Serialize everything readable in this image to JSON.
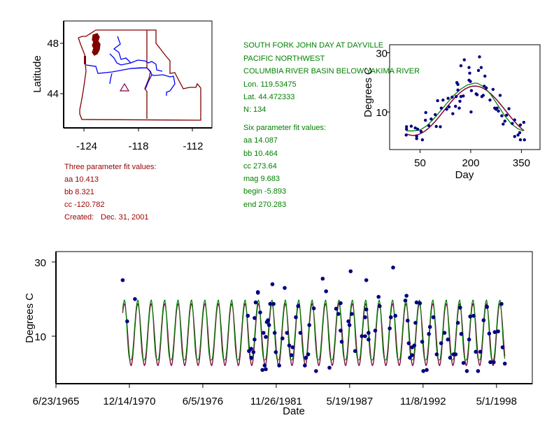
{
  "colors": {
    "state": "#800000",
    "river": "#0000ff",
    "site": "#800040",
    "three_fit": "#800040",
    "six_fit": "#008000",
    "points": "#000080",
    "info_red": "#990000",
    "info_green": "#008000"
  },
  "map": {
    "ylabel": "Latitude",
    "xticks": [
      "-124",
      "-118",
      "-112"
    ],
    "yticks": [
      "48",
      "44"
    ],
    "site_marker": "triangle"
  },
  "three_param": {
    "title": "Three parameter fit values:",
    "lines": [
      "aa 10.413",
      "bb 8.321",
      "cc -120.782"
    ],
    "created_label": "Created:",
    "created_date": "Dec. 31, 2001"
  },
  "station": {
    "lines": [
      "SOUTH FORK JOHN DAY AT DAYVILLE",
      "PACIFIC NORTHWEST",
      "COLUMBIA RIVER BASIN BELOW YAKIMA RIVER",
      "Lon. 119.53475",
      "Lat. 44.472333",
      "N: 134"
    ]
  },
  "six_param": {
    "title": "Six parameter fit values:",
    "lines": [
      "aa 14.087",
      "bb 10.464",
      "cc 273.64",
      "mag 9.683",
      "begin -5.893",
      "end 270.283"
    ]
  },
  "chart_data": [
    {
      "type": "scatter",
      "xlabel": "Day",
      "ylabel": "Degrees C",
      "xticks": [
        50,
        200,
        350
      ],
      "yticks": [
        10,
        30
      ],
      "xlim": [
        -40,
        405
      ],
      "ylim": [
        -2.7,
        32.7
      ],
      "grid": false,
      "points": [
        [
          10,
          5.0
        ],
        [
          10,
          4.2
        ],
        [
          24,
          5.2
        ],
        [
          9,
          2.2
        ],
        [
          36,
          4.6
        ],
        [
          40,
          1.8
        ],
        [
          43,
          4.2
        ],
        [
          40,
          1.0
        ],
        [
          57,
          0.6
        ],
        [
          53,
          3.4
        ],
        [
          67,
          9.8
        ],
        [
          66,
          7.2
        ],
        [
          76,
          5.4
        ],
        [
          83,
          7.6
        ],
        [
          98,
          5.1
        ],
        [
          95,
          9.1
        ],
        [
          102,
          13.8
        ],
        [
          110,
          5.0
        ],
        [
          113,
          11.3
        ],
        [
          118,
          14.0
        ],
        [
          129,
          10.9
        ],
        [
          133,
          14.6
        ],
        [
          136,
          11.7
        ],
        [
          147,
          9.4
        ],
        [
          145,
          15.0
        ],
        [
          155,
          11.9
        ],
        [
          157,
          15.2
        ],
        [
          159,
          19.9
        ],
        [
          162,
          19.3
        ],
        [
          162,
          17.4
        ],
        [
          168,
          13.6
        ],
        [
          171,
          15.2
        ],
        [
          166,
          11.3
        ],
        [
          178,
          15.4
        ],
        [
          181,
          27.6
        ],
        [
          171,
          25.6
        ],
        [
          195,
          25.0
        ],
        [
          197,
          23.1
        ],
        [
          199,
          20.3
        ],
        [
          202,
          17.2
        ],
        [
          201,
          10.0
        ],
        [
          195,
          20.7
        ],
        [
          216,
          16.1
        ],
        [
          219,
          15.8
        ],
        [
          226,
          28.6
        ],
        [
          223,
          24.0
        ],
        [
          231,
          25.0
        ],
        [
          237,
          15.6
        ],
        [
          233,
          15.2
        ],
        [
          242,
          22.1
        ],
        [
          240,
          18.7
        ],
        [
          246,
          18.1
        ],
        [
          257,
          14.0
        ],
        [
          266,
          17.6
        ],
        [
          271,
          11.3
        ],
        [
          275,
          10.9
        ],
        [
          278,
          11.3
        ],
        [
          282,
          10.3
        ],
        [
          287,
          15.6
        ],
        [
          292,
          8.7
        ],
        [
          296,
          5.9
        ],
        [
          301,
          6.9
        ],
        [
          306,
          8.9
        ],
        [
          313,
          11.1
        ],
        [
          323,
          6.1
        ],
        [
          330,
          7.3
        ],
        [
          330,
          1.7
        ],
        [
          340,
          2.2
        ],
        [
          345,
          3.0
        ],
        [
          347,
          5.6
        ],
        [
          347,
          0.6
        ],
        [
          357,
          6.5
        ],
        [
          359,
          0.6
        ]
      ],
      "six_fit_curve": {
        "day": [
          10,
          30,
          50,
          70,
          90,
          110,
          130,
          150,
          170,
          190,
          210,
          220,
          240,
          260,
          280,
          300,
          320,
          340,
          355
        ],
        "temp": [
          3.6,
          3.6,
          3.9,
          5.3,
          7.6,
          10.3,
          13.0,
          15.6,
          17.7,
          19.1,
          19.7,
          19.7,
          18.4,
          15.8,
          12.3,
          8.8,
          6.0,
          4.3,
          3.6
        ]
      },
      "three_fit": {
        "aa": 10.413,
        "bb": 8.321,
        "cc": -120.782
      }
    },
    {
      "type": "scatter",
      "xlabel": "Date",
      "ylabel": "Degrees C",
      "xticks": [
        "6/23/1965",
        "12/14/1970",
        "6/5/1976",
        "11/26/1981",
        "5/19/1987",
        "11/8/1992",
        "5/1/1998"
      ],
      "yticks": [
        10,
        30
      ],
      "xlim": [
        "1965-06-23",
        "2001-01-01"
      ],
      "ylim": [
        -2.8,
        32.8
      ],
      "fit_range": [
        "1970-06",
        "1998-12"
      ],
      "grid": false,
      "points": [
        [
          "1970-06",
          25.1
        ],
        [
          "1970-10",
          14.0
        ],
        [
          "1971-05",
          20.0
        ],
        [
          "1979-10",
          15.5
        ],
        [
          "1979-11",
          6.0
        ],
        [
          "1980-01",
          6.6
        ],
        [
          "1980-01",
          4.2
        ],
        [
          "1980-03",
          5.7
        ],
        [
          "1980-04",
          9.1
        ],
        [
          "1980-04",
          14.9
        ],
        [
          "1980-05",
          19.1
        ],
        [
          "1980-07",
          21.9
        ],
        [
          "1980-07",
          21.7
        ],
        [
          "1980-09",
          16.4
        ],
        [
          "1980-11",
          0.9
        ],
        [
          "1981-01",
          2.1
        ],
        [
          "1981-02",
          1.1
        ],
        [
          "1980-12",
          10.9
        ],
        [
          "1981-02",
          9.8
        ],
        [
          "1981-03",
          13.8
        ],
        [
          "1981-04",
          14.3
        ],
        [
          "1981-05",
          13.0
        ],
        [
          "1981-06",
          18.7
        ],
        [
          "1981-08",
          24.0
        ],
        [
          "1981-09",
          18.7
        ],
        [
          "1981-10",
          10.9
        ],
        [
          "1981-11",
          5.7
        ],
        [
          "1982-02",
          2.1
        ],
        [
          "1982-05",
          9.4
        ],
        [
          "1982-07",
          23.0
        ],
        [
          "1982-09",
          10.9
        ],
        [
          "1982-11",
          7.5
        ],
        [
          "1983-01",
          4.9
        ],
        [
          "1983-02",
          7.0
        ],
        [
          "1983-05",
          15.1
        ],
        [
          "1983-07",
          18.1
        ],
        [
          "1983-09",
          10.9
        ],
        [
          "1984-01",
          2.1
        ],
        [
          "1984-02",
          4.2
        ],
        [
          "1984-04",
          5.1
        ],
        [
          "1984-05",
          13.0
        ],
        [
          "1984-09",
          17.5
        ],
        [
          "1984-11",
          0.6
        ],
        [
          "1985-05",
          25.5
        ],
        [
          "1985-08",
          22.1
        ],
        [
          "1985-11",
          1.5
        ],
        [
          "1986-05",
          17.4
        ],
        [
          "1986-07",
          16.0
        ],
        [
          "1986-09",
          18.9
        ],
        [
          "1986-09",
          11.5
        ],
        [
          "1986-10",
          8.5
        ],
        [
          "1987-04",
          14.0
        ],
        [
          "1987-05",
          13.0
        ],
        [
          "1987-06",
          27.5
        ],
        [
          "1987-07",
          16.0
        ],
        [
          "1987-10",
          6.0
        ],
        [
          "1988-04",
          10.0
        ],
        [
          "1988-07",
          10.0
        ],
        [
          "1988-07",
          15.1
        ],
        [
          "1988-08",
          17.2
        ],
        [
          "1988-08",
          25.1
        ],
        [
          "1988-10",
          10.9
        ],
        [
          "1988-10",
          9.1
        ],
        [
          "1989-04",
          11.5
        ],
        [
          "1989-07",
          20.6
        ],
        [
          "1989-08",
          18.1
        ],
        [
          "1990-05",
          12.1
        ],
        [
          "1990-06",
          15.1
        ],
        [
          "1990-08",
          28.5
        ],
        [
          "1990-10",
          15.5
        ],
        [
          "1991-07",
          19.6
        ],
        [
          "1991-08",
          20.9
        ],
        [
          "1991-09",
          14.2
        ],
        [
          "1991-10",
          8.1
        ],
        [
          "1991-11",
          4.2
        ],
        [
          "1992-01",
          7.0
        ],
        [
          "1992-01",
          4.9
        ],
        [
          "1992-03",
          7.5
        ],
        [
          "1992-04",
          13.6
        ],
        [
          "1992-05",
          19.1
        ],
        [
          "1992-08",
          18.9
        ],
        [
          "1992-10",
          8.5
        ],
        [
          "1992-11",
          0.6
        ],
        [
          "1993-02",
          0.9
        ],
        [
          "1993-04",
          10.6
        ],
        [
          "1993-05",
          12.5
        ],
        [
          "1993-08",
          15.1
        ],
        [
          "1993-11",
          5.1
        ],
        [
          "1994-03",
          8.1
        ],
        [
          "1994-06",
          10.9
        ],
        [
          "1994-09",
          9.1
        ],
        [
          "1994-11",
          4.2
        ],
        [
          "1995-02",
          5.1
        ],
        [
          "1995-04",
          5.1
        ],
        [
          "1995-06",
          13.6
        ],
        [
          "1995-08",
          17.7
        ],
        [
          "1995-09",
          10.6
        ],
        [
          "1995-11",
          2.8
        ],
        [
          "1996-02",
          0.6
        ],
        [
          "1996-04",
          9.1
        ],
        [
          "1996-05",
          15.3
        ],
        [
          "1996-08",
          15.5
        ],
        [
          "1996-10",
          5.8
        ],
        [
          "1996-12",
          0.6
        ],
        [
          "1997-02",
          5.8
        ],
        [
          "1997-05",
          14.3
        ],
        [
          "1997-08",
          17.9
        ],
        [
          "1997-10",
          10.7
        ],
        [
          "1997-11",
          3.0
        ],
        [
          "1998-02",
          3.0
        ],
        [
          "1998-03",
          11.1
        ],
        [
          "1998-06",
          11.3
        ],
        [
          "1998-09",
          18.7
        ],
        [
          "1998-10",
          7.0
        ],
        [
          "1998-12",
          2.6
        ]
      ]
    }
  ]
}
